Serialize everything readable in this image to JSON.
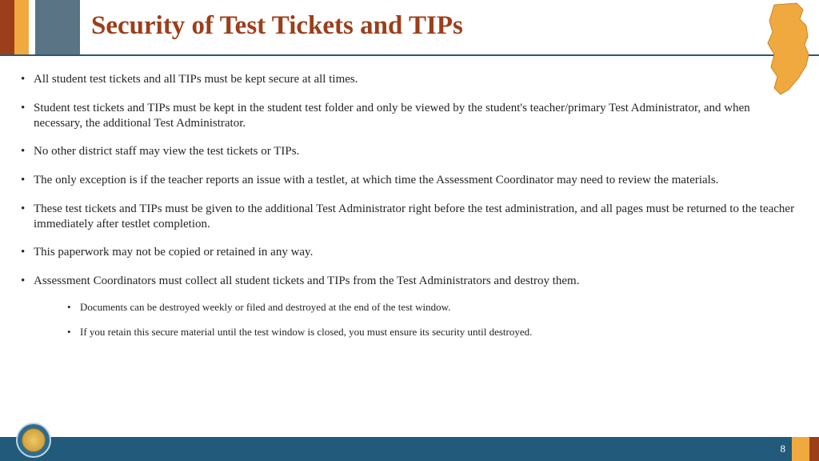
{
  "colors": {
    "title": "#9c3e1a",
    "underline": "#2a5a72",
    "body_text": "#252525",
    "footer_main": "#215a7a",
    "nj_fill": "#f0a93e",
    "nj_stroke": "#c8882f",
    "seal_bg": "#2a6d93",
    "seal_border": "#c8d4da"
  },
  "header_stripes": [
    {
      "w": 18,
      "color": "#9c3e1a"
    },
    {
      "w": 18,
      "color": "#f0a93e"
    },
    {
      "w": 8,
      "color": "#ffffff"
    },
    {
      "w": 56,
      "color": "#5a7486"
    }
  ],
  "footer_stripes": [
    {
      "w": 22,
      "color": "#f0a93e"
    },
    {
      "w": 12,
      "color": "#9c3e1a"
    }
  ],
  "title": "Security of Test Tickets and TIPs",
  "title_fontsize": 33,
  "body_fontsize": 15,
  "sub_fontsize": 13,
  "bullets": [
    {
      "text": "All student test tickets and all TIPs must be kept secure at all times."
    },
    {
      "text": "Student test tickets and TIPs must be kept in the student test folder and only be viewed by the student's teacher/primary Test Administrator, and when necessary, the additional Test Administrator."
    },
    {
      "text": "No other district staff may view the test tickets or TIPs."
    },
    {
      "text": "The only exception is if the teacher reports an issue with a testlet, at which time the Assessment Coordinator may need to review the materials."
    },
    {
      "text": "These test tickets and TIPs must be given to the additional Test Administrator right before the test administration, and all pages must be returned to the teacher immediately after testlet completion."
    },
    {
      "text": "This paperwork may not be copied or retained in any way."
    },
    {
      "text": "Assessment Coordinators must collect all student tickets and TIPs from the Test Administrators and destroy them.",
      "sub": [
        "Documents can be destroyed weekly or filed and destroyed at the end of the test window.",
        "If you retain this secure material until the test window is closed, you must ensure its security until destroyed."
      ]
    }
  ],
  "page_number": "8"
}
